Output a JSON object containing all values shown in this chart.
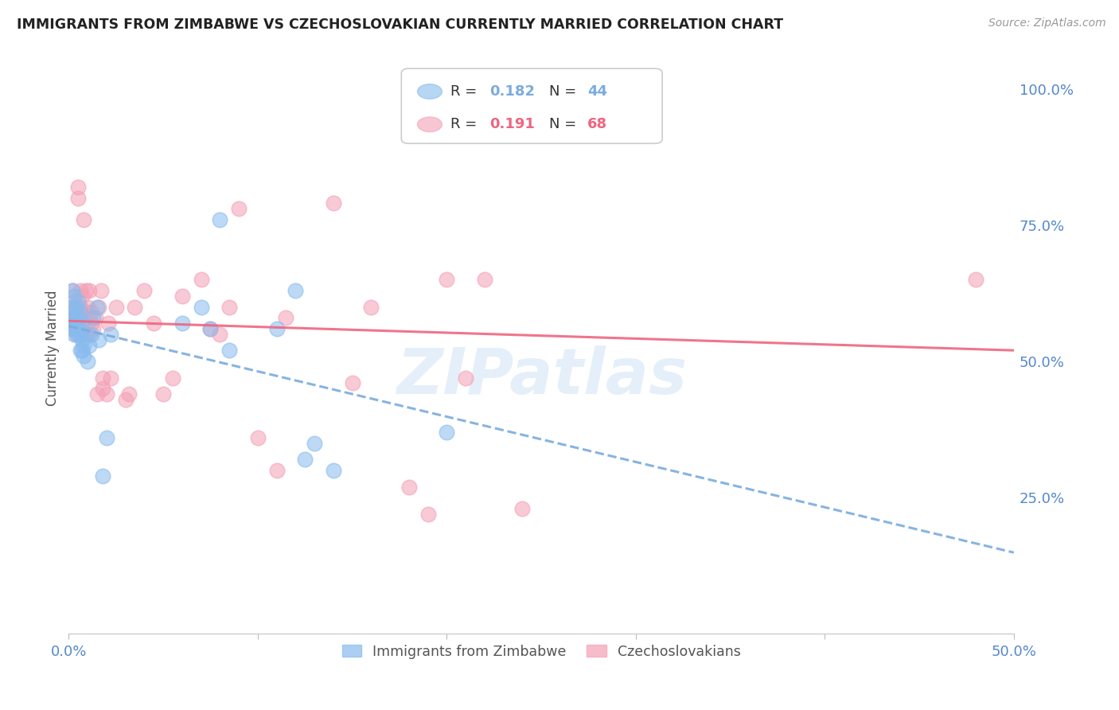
{
  "title": "IMMIGRANTS FROM ZIMBABWE VS CZECHOSLOVAKIAN CURRENTLY MARRIED CORRELATION CHART",
  "source": "Source: ZipAtlas.com",
  "ylabel_label": "Currently Married",
  "x_min": 0.0,
  "x_max": 0.5,
  "y_min": 0.0,
  "y_max": 1.05,
  "x_ticks": [
    0.0,
    0.1,
    0.2,
    0.3,
    0.4,
    0.5
  ],
  "x_tick_labels": [
    "0.0%",
    "",
    "",
    "",
    "",
    "50.0%"
  ],
  "y_ticks": [
    0.25,
    0.5,
    0.75,
    1.0
  ],
  "y_tick_labels": [
    "25.0%",
    "50.0%",
    "75.0%",
    "100.0%"
  ],
  "zimbabwe_color": "#88BBEE",
  "czechoslovakia_color": "#F4A0B5",
  "trend_blue_color": "#7AACDD",
  "trend_pink_color": "#EE6680",
  "background_color": "#FFFFFF",
  "grid_color": "#DDDDDD",
  "tick_label_color": "#5588CC",
  "watermark": "ZIPatlas",
  "legend_r1_val": "0.182",
  "legend_n1_val": "44",
  "legend_r2_val": "0.191",
  "legend_n2_val": "68",
  "zimbabwe_x": [
    0.001,
    0.002,
    0.002,
    0.002,
    0.003,
    0.003,
    0.003,
    0.003,
    0.004,
    0.004,
    0.004,
    0.005,
    0.005,
    0.005,
    0.005,
    0.006,
    0.006,
    0.006,
    0.007,
    0.007,
    0.007,
    0.008,
    0.008,
    0.009,
    0.01,
    0.011,
    0.012,
    0.013,
    0.015,
    0.016,
    0.018,
    0.02,
    0.022,
    0.06,
    0.07,
    0.075,
    0.08,
    0.085,
    0.11,
    0.12,
    0.125,
    0.13,
    0.14,
    0.2
  ],
  "zimbabwe_y": [
    0.56,
    0.6,
    0.63,
    0.57,
    0.58,
    0.62,
    0.55,
    0.59,
    0.56,
    0.6,
    0.57,
    0.55,
    0.58,
    0.61,
    0.56,
    0.52,
    0.55,
    0.59,
    0.52,
    0.54,
    0.57,
    0.51,
    0.53,
    0.55,
    0.5,
    0.53,
    0.55,
    0.58,
    0.6,
    0.54,
    0.29,
    0.36,
    0.55,
    0.57,
    0.6,
    0.56,
    0.76,
    0.52,
    0.56,
    0.63,
    0.32,
    0.35,
    0.3,
    0.37
  ],
  "czechoslovakia_x": [
    0.001,
    0.002,
    0.002,
    0.003,
    0.003,
    0.003,
    0.003,
    0.004,
    0.004,
    0.004,
    0.005,
    0.005,
    0.005,
    0.006,
    0.006,
    0.006,
    0.007,
    0.007,
    0.007,
    0.008,
    0.008,
    0.009,
    0.009,
    0.009,
    0.01,
    0.01,
    0.011,
    0.011,
    0.012,
    0.012,
    0.013,
    0.014,
    0.015,
    0.016,
    0.017,
    0.018,
    0.018,
    0.02,
    0.021,
    0.022,
    0.025,
    0.03,
    0.032,
    0.035,
    0.04,
    0.045,
    0.05,
    0.055,
    0.06,
    0.07,
    0.075,
    0.08,
    0.085,
    0.09,
    0.1,
    0.11,
    0.115,
    0.14,
    0.15,
    0.16,
    0.18,
    0.19,
    0.2,
    0.21,
    0.22,
    0.24,
    0.25,
    0.48
  ],
  "czechoslovakia_y": [
    0.58,
    0.6,
    0.63,
    0.56,
    0.58,
    0.61,
    0.57,
    0.55,
    0.6,
    0.58,
    0.8,
    0.82,
    0.58,
    0.56,
    0.6,
    0.63,
    0.55,
    0.59,
    0.62,
    0.58,
    0.76,
    0.55,
    0.59,
    0.63,
    0.57,
    0.6,
    0.55,
    0.63,
    0.57,
    0.59,
    0.56,
    0.58,
    0.44,
    0.6,
    0.63,
    0.45,
    0.47,
    0.44,
    0.57,
    0.47,
    0.6,
    0.43,
    0.44,
    0.6,
    0.63,
    0.57,
    0.44,
    0.47,
    0.62,
    0.65,
    0.56,
    0.55,
    0.6,
    0.78,
    0.36,
    0.3,
    0.58,
    0.79,
    0.46,
    0.6,
    0.27,
    0.22,
    0.65,
    0.47,
    0.65,
    0.23,
    1.02,
    0.65
  ]
}
